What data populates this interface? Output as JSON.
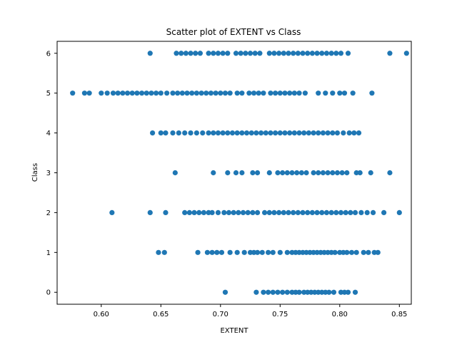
{
  "chart_data": {
    "type": "scatter",
    "title": "Scatter plot of EXTENT vs Class",
    "xlabel": "EXTENT",
    "ylabel": "Class",
    "xlim": [
      0.563,
      0.86
    ],
    "ylim": [
      -0.3,
      6.3
    ],
    "xticks": [
      0.6,
      0.65,
      0.7,
      0.75,
      0.8,
      0.85
    ],
    "xtick_labels": [
      "0.60",
      "0.65",
      "0.70",
      "0.75",
      "0.80",
      "0.85"
    ],
    "yticks": [
      0,
      1,
      2,
      3,
      4,
      5,
      6
    ],
    "ytick_labels": [
      "0",
      "1",
      "2",
      "3",
      "4",
      "5",
      "6"
    ],
    "grid": false,
    "marker_color": "#1f77b4",
    "series": [
      {
        "points": [
          [
            0.704,
            0
          ],
          [
            0.73,
            0
          ],
          [
            0.736,
            0
          ],
          [
            0.74,
            0
          ],
          [
            0.744,
            0
          ],
          [
            0.748,
            0
          ],
          [
            0.752,
            0
          ],
          [
            0.756,
            0
          ],
          [
            0.76,
            0
          ],
          [
            0.763,
            0
          ],
          [
            0.766,
            0
          ],
          [
            0.77,
            0
          ],
          [
            0.773,
            0
          ],
          [
            0.776,
            0
          ],
          [
            0.779,
            0
          ],
          [
            0.782,
            0
          ],
          [
            0.785,
            0
          ],
          [
            0.788,
            0
          ],
          [
            0.791,
            0
          ],
          [
            0.795,
            0
          ],
          [
            0.801,
            0
          ],
          [
            0.804,
            0
          ],
          [
            0.807,
            0
          ],
          [
            0.813,
            0
          ],
          [
            0.648,
            1
          ],
          [
            0.653,
            1
          ],
          [
            0.681,
            1
          ],
          [
            0.689,
            1
          ],
          [
            0.693,
            1
          ],
          [
            0.697,
            1
          ],
          [
            0.701,
            1
          ],
          [
            0.708,
            1
          ],
          [
            0.714,
            1
          ],
          [
            0.72,
            1
          ],
          [
            0.725,
            1
          ],
          [
            0.728,
            1
          ],
          [
            0.731,
            1
          ],
          [
            0.735,
            1
          ],
          [
            0.74,
            1
          ],
          [
            0.744,
            1
          ],
          [
            0.75,
            1
          ],
          [
            0.756,
            1
          ],
          [
            0.76,
            1
          ],
          [
            0.763,
            1
          ],
          [
            0.766,
            1
          ],
          [
            0.769,
            1
          ],
          [
            0.772,
            1
          ],
          [
            0.775,
            1
          ],
          [
            0.778,
            1
          ],
          [
            0.781,
            1
          ],
          [
            0.784,
            1
          ],
          [
            0.787,
            1
          ],
          [
            0.79,
            1
          ],
          [
            0.793,
            1
          ],
          [
            0.796,
            1
          ],
          [
            0.8,
            1
          ],
          [
            0.803,
            1
          ],
          [
            0.806,
            1
          ],
          [
            0.81,
            1
          ],
          [
            0.814,
            1
          ],
          [
            0.82,
            1
          ],
          [
            0.824,
            1
          ],
          [
            0.829,
            1
          ],
          [
            0.832,
            1
          ],
          [
            0.609,
            2
          ],
          [
            0.641,
            2
          ],
          [
            0.654,
            2
          ],
          [
            0.67,
            2
          ],
          [
            0.674,
            2
          ],
          [
            0.678,
            2
          ],
          [
            0.682,
            2
          ],
          [
            0.686,
            2
          ],
          [
            0.69,
            2
          ],
          [
            0.693,
            2
          ],
          [
            0.698,
            2
          ],
          [
            0.703,
            2
          ],
          [
            0.707,
            2
          ],
          [
            0.711,
            2
          ],
          [
            0.715,
            2
          ],
          [
            0.719,
            2
          ],
          [
            0.723,
            2
          ],
          [
            0.727,
            2
          ],
          [
            0.731,
            2
          ],
          [
            0.737,
            2
          ],
          [
            0.741,
            2
          ],
          [
            0.745,
            2
          ],
          [
            0.749,
            2
          ],
          [
            0.753,
            2
          ],
          [
            0.757,
            2
          ],
          [
            0.761,
            2
          ],
          [
            0.765,
            2
          ],
          [
            0.769,
            2
          ],
          [
            0.773,
            2
          ],
          [
            0.777,
            2
          ],
          [
            0.781,
            2
          ],
          [
            0.785,
            2
          ],
          [
            0.789,
            2
          ],
          [
            0.793,
            2
          ],
          [
            0.797,
            2
          ],
          [
            0.801,
            2
          ],
          [
            0.805,
            2
          ],
          [
            0.809,
            2
          ],
          [
            0.813,
            2
          ],
          [
            0.818,
            2
          ],
          [
            0.823,
            2
          ],
          [
            0.828,
            2
          ],
          [
            0.837,
            2
          ],
          [
            0.85,
            2
          ],
          [
            0.662,
            3
          ],
          [
            0.694,
            3
          ],
          [
            0.706,
            3
          ],
          [
            0.713,
            3
          ],
          [
            0.718,
            3
          ],
          [
            0.727,
            3
          ],
          [
            0.731,
            3
          ],
          [
            0.741,
            3
          ],
          [
            0.748,
            3
          ],
          [
            0.752,
            3
          ],
          [
            0.756,
            3
          ],
          [
            0.76,
            3
          ],
          [
            0.764,
            3
          ],
          [
            0.768,
            3
          ],
          [
            0.772,
            3
          ],
          [
            0.778,
            3
          ],
          [
            0.782,
            3
          ],
          [
            0.786,
            3
          ],
          [
            0.79,
            3
          ],
          [
            0.794,
            3
          ],
          [
            0.798,
            3
          ],
          [
            0.802,
            3
          ],
          [
            0.806,
            3
          ],
          [
            0.814,
            3
          ],
          [
            0.817,
            3
          ],
          [
            0.826,
            3
          ],
          [
            0.842,
            3
          ],
          [
            0.643,
            4
          ],
          [
            0.65,
            4
          ],
          [
            0.654,
            4
          ],
          [
            0.66,
            4
          ],
          [
            0.665,
            4
          ],
          [
            0.67,
            4
          ],
          [
            0.675,
            4
          ],
          [
            0.68,
            4
          ],
          [
            0.685,
            4
          ],
          [
            0.69,
            4
          ],
          [
            0.694,
            4
          ],
          [
            0.698,
            4
          ],
          [
            0.702,
            4
          ],
          [
            0.706,
            4
          ],
          [
            0.71,
            4
          ],
          [
            0.714,
            4
          ],
          [
            0.718,
            4
          ],
          [
            0.722,
            4
          ],
          [
            0.726,
            4
          ],
          [
            0.73,
            4
          ],
          [
            0.734,
            4
          ],
          [
            0.738,
            4
          ],
          [
            0.742,
            4
          ],
          [
            0.746,
            4
          ],
          [
            0.75,
            4
          ],
          [
            0.754,
            4
          ],
          [
            0.758,
            4
          ],
          [
            0.762,
            4
          ],
          [
            0.766,
            4
          ],
          [
            0.77,
            4
          ],
          [
            0.774,
            4
          ],
          [
            0.778,
            4
          ],
          [
            0.782,
            4
          ],
          [
            0.786,
            4
          ],
          [
            0.79,
            4
          ],
          [
            0.794,
            4
          ],
          [
            0.798,
            4
          ],
          [
            0.803,
            4
          ],
          [
            0.808,
            4
          ],
          [
            0.812,
            4
          ],
          [
            0.816,
            4
          ],
          [
            0.576,
            5
          ],
          [
            0.586,
            5
          ],
          [
            0.59,
            5
          ],
          [
            0.6,
            5
          ],
          [
            0.605,
            5
          ],
          [
            0.61,
            5
          ],
          [
            0.614,
            5
          ],
          [
            0.618,
            5
          ],
          [
            0.622,
            5
          ],
          [
            0.626,
            5
          ],
          [
            0.63,
            5
          ],
          [
            0.634,
            5
          ],
          [
            0.638,
            5
          ],
          [
            0.642,
            5
          ],
          [
            0.646,
            5
          ],
          [
            0.65,
            5
          ],
          [
            0.655,
            5
          ],
          [
            0.66,
            5
          ],
          [
            0.664,
            5
          ],
          [
            0.668,
            5
          ],
          [
            0.672,
            5
          ],
          [
            0.676,
            5
          ],
          [
            0.68,
            5
          ],
          [
            0.684,
            5
          ],
          [
            0.688,
            5
          ],
          [
            0.692,
            5
          ],
          [
            0.696,
            5
          ],
          [
            0.7,
            5
          ],
          [
            0.704,
            5
          ],
          [
            0.708,
            5
          ],
          [
            0.714,
            5
          ],
          [
            0.718,
            5
          ],
          [
            0.724,
            5
          ],
          [
            0.728,
            5
          ],
          [
            0.732,
            5
          ],
          [
            0.736,
            5
          ],
          [
            0.742,
            5
          ],
          [
            0.746,
            5
          ],
          [
            0.75,
            5
          ],
          [
            0.754,
            5
          ],
          [
            0.758,
            5
          ],
          [
            0.762,
            5
          ],
          [
            0.766,
            5
          ],
          [
            0.771,
            5
          ],
          [
            0.782,
            5
          ],
          [
            0.788,
            5
          ],
          [
            0.794,
            5
          ],
          [
            0.8,
            5
          ],
          [
            0.804,
            5
          ],
          [
            0.811,
            5
          ],
          [
            0.827,
            5
          ],
          [
            0.641,
            6
          ],
          [
            0.663,
            6
          ],
          [
            0.667,
            6
          ],
          [
            0.671,
            6
          ],
          [
            0.675,
            6
          ],
          [
            0.679,
            6
          ],
          [
            0.683,
            6
          ],
          [
            0.69,
            6
          ],
          [
            0.694,
            6
          ],
          [
            0.698,
            6
          ],
          [
            0.702,
            6
          ],
          [
            0.706,
            6
          ],
          [
            0.713,
            6
          ],
          [
            0.717,
            6
          ],
          [
            0.721,
            6
          ],
          [
            0.725,
            6
          ],
          [
            0.729,
            6
          ],
          [
            0.733,
            6
          ],
          [
            0.741,
            6
          ],
          [
            0.745,
            6
          ],
          [
            0.749,
            6
          ],
          [
            0.753,
            6
          ],
          [
            0.757,
            6
          ],
          [
            0.761,
            6
          ],
          [
            0.765,
            6
          ],
          [
            0.769,
            6
          ],
          [
            0.773,
            6
          ],
          [
            0.777,
            6
          ],
          [
            0.781,
            6
          ],
          [
            0.785,
            6
          ],
          [
            0.789,
            6
          ],
          [
            0.793,
            6
          ],
          [
            0.797,
            6
          ],
          [
            0.801,
            6
          ],
          [
            0.807,
            6
          ],
          [
            0.842,
            6
          ],
          [
            0.856,
            6
          ]
        ]
      }
    ]
  }
}
